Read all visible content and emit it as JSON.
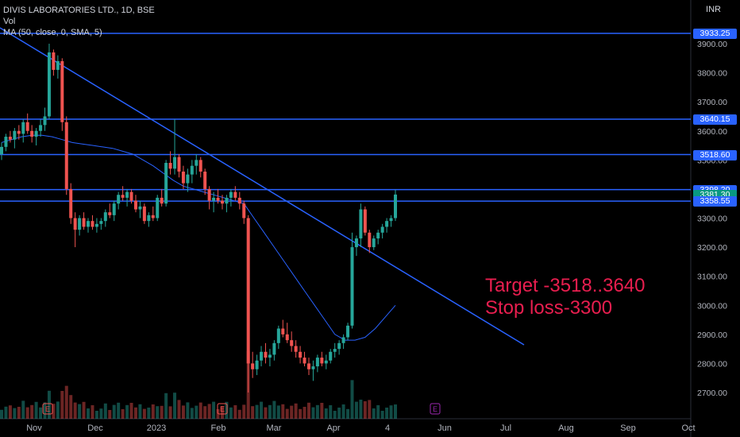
{
  "legend": {
    "symbol": "DIVIS LABORATORIES LTD., 1D, BSE",
    "vol": "Vol",
    "ma": "MA (50, close, 0, SMA, 5)"
  },
  "currency": "INR",
  "annotation": {
    "target": "Target -3518..3640",
    "stoploss": "Stop loss-3300"
  },
  "price_tags": [
    {
      "label": "3933.25",
      "value": 3933.25,
      "color": "#2962ff"
    },
    {
      "label": "3640.15",
      "value": 3640.15,
      "color": "#2962ff"
    },
    {
      "label": "3518.60",
      "value": 3518.6,
      "color": "#2962ff"
    },
    {
      "label": "3398.20",
      "value": 3398.2,
      "color": "#2962ff"
    },
    {
      "label": "3381.30",
      "value": 3381.3,
      "color": "#089981"
    },
    {
      "label": "3358.55",
      "value": 3358.55,
      "color": "#2962ff"
    }
  ],
  "chart_data": {
    "type": "candlestick",
    "y_ticks": [
      "3900.00",
      "3800.00",
      "3700.00",
      "3600.00",
      "3500.00",
      "3400.00",
      "3300.00",
      "3200.00",
      "3100.00",
      "3000.00",
      "2900.00",
      "2800.00",
      "2700.00"
    ],
    "y_tick_values": [
      3900,
      3800,
      3700,
      3600,
      3500,
      3400,
      3300,
      3200,
      3100,
      3000,
      2900,
      2800,
      2700
    ],
    "x_ticks": [
      "Nov",
      "Dec",
      "2023",
      "Feb",
      "Mar",
      "Apr",
      "4",
      "Jun",
      "Jul",
      "Aug",
      "Sep",
      "Oct"
    ],
    "horizontal_levels": [
      3933.25,
      3640.15,
      3518.6,
      3398.2,
      3358.55
    ],
    "last_price": 3381.3,
    "earnings_markers": [
      "E",
      "E",
      "E"
    ],
    "colors": {
      "up": "#26a69a",
      "down": "#ef5350",
      "level": "#2962ff",
      "ma": "#2962ff"
    },
    "candles": [
      [
        3520,
        3560,
        3500,
        3545
      ],
      [
        3545,
        3590,
        3530,
        3580
      ],
      [
        3580,
        3600,
        3560,
        3570
      ],
      [
        3570,
        3610,
        3540,
        3600
      ],
      [
        3600,
        3620,
        3570,
        3590
      ],
      [
        3590,
        3640,
        3560,
        3630
      ],
      [
        3630,
        3660,
        3590,
        3600
      ],
      [
        3600,
        3620,
        3560,
        3580
      ],
      [
        3580,
        3610,
        3550,
        3600
      ],
      [
        3600,
        3640,
        3580,
        3620
      ],
      [
        3620,
        3680,
        3600,
        3650
      ],
      [
        3650,
        3900,
        3640,
        3870
      ],
      [
        3870,
        3880,
        3790,
        3810
      ],
      [
        3810,
        3860,
        3780,
        3840
      ],
      [
        3840,
        3850,
        3600,
        3630
      ],
      [
        3630,
        3650,
        3380,
        3400
      ],
      [
        3400,
        3420,
        3280,
        3300
      ],
      [
        3300,
        3320,
        3200,
        3260
      ],
      [
        3260,
        3310,
        3240,
        3300
      ],
      [
        3300,
        3320,
        3260,
        3270
      ],
      [
        3270,
        3300,
        3250,
        3290
      ],
      [
        3290,
        3310,
        3260,
        3270
      ],
      [
        3270,
        3300,
        3250,
        3280
      ],
      [
        3280,
        3300,
        3260,
        3290
      ],
      [
        3290,
        3330,
        3270,
        3320
      ],
      [
        3320,
        3350,
        3300,
        3310
      ],
      [
        3310,
        3360,
        3290,
        3350
      ],
      [
        3350,
        3390,
        3330,
        3380
      ],
      [
        3380,
        3410,
        3360,
        3370
      ],
      [
        3370,
        3400,
        3340,
        3390
      ],
      [
        3390,
        3400,
        3350,
        3360
      ],
      [
        3360,
        3380,
        3320,
        3330
      ],
      [
        3330,
        3360,
        3300,
        3340
      ],
      [
        3340,
        3350,
        3280,
        3290
      ],
      [
        3290,
        3320,
        3270,
        3310
      ],
      [
        3310,
        3340,
        3290,
        3300
      ],
      [
        3300,
        3380,
        3290,
        3370
      ],
      [
        3370,
        3400,
        3340,
        3350
      ],
      [
        3350,
        3500,
        3340,
        3490
      ],
      [
        3490,
        3530,
        3450,
        3470
      ],
      [
        3470,
        3640,
        3450,
        3510
      ],
      [
        3510,
        3520,
        3440,
        3460
      ],
      [
        3460,
        3480,
        3400,
        3420
      ],
      [
        3420,
        3470,
        3390,
        3450
      ],
      [
        3450,
        3500,
        3420,
        3480
      ],
      [
        3480,
        3520,
        3450,
        3500
      ],
      [
        3500,
        3510,
        3440,
        3460
      ],
      [
        3460,
        3470,
        3380,
        3400
      ],
      [
        3400,
        3410,
        3330,
        3360
      ],
      [
        3360,
        3390,
        3320,
        3370
      ],
      [
        3370,
        3400,
        3350,
        3360
      ],
      [
        3360,
        3380,
        3330,
        3350
      ],
      [
        3350,
        3380,
        3320,
        3370
      ],
      [
        3370,
        3400,
        3340,
        3390
      ],
      [
        3390,
        3410,
        3360,
        3370
      ],
      [
        3370,
        3390,
        3330,
        3350
      ],
      [
        3350,
        3360,
        3280,
        3300
      ],
      [
        3300,
        3310,
        2700,
        2800
      ],
      [
        2800,
        2840,
        2750,
        2780
      ],
      [
        2780,
        2830,
        2760,
        2810
      ],
      [
        2810,
        2860,
        2790,
        2840
      ],
      [
        2840,
        2870,
        2800,
        2820
      ],
      [
        2820,
        2850,
        2790,
        2830
      ],
      [
        2830,
        2880,
        2810,
        2870
      ],
      [
        2870,
        2930,
        2850,
        2920
      ],
      [
        2920,
        2950,
        2890,
        2900
      ],
      [
        2900,
        2940,
        2870,
        2880
      ],
      [
        2880,
        2910,
        2840,
        2860
      ],
      [
        2860,
        2880,
        2820,
        2840
      ],
      [
        2840,
        2860,
        2800,
        2820
      ],
      [
        2820,
        2840,
        2790,
        2800
      ],
      [
        2800,
        2820,
        2760,
        2780
      ],
      [
        2780,
        2810,
        2740,
        2790
      ],
      [
        2790,
        2830,
        2770,
        2820
      ],
      [
        2820,
        2840,
        2790,
        2800
      ],
      [
        2800,
        2830,
        2780,
        2810
      ],
      [
        2810,
        2850,
        2800,
        2840
      ],
      [
        2840,
        2870,
        2820,
        2850
      ],
      [
        2850,
        2880,
        2830,
        2870
      ],
      [
        2870,
        2900,
        2850,
        2890
      ],
      [
        2890,
        2940,
        2880,
        2930
      ],
      [
        2930,
        3250,
        2920,
        3200
      ],
      [
        3200,
        3240,
        3170,
        3230
      ],
      [
        3230,
        3350,
        3200,
        3330
      ],
      [
        3330,
        3340,
        3240,
        3250
      ],
      [
        3250,
        3260,
        3180,
        3200
      ],
      [
        3200,
        3240,
        3190,
        3230
      ],
      [
        3230,
        3260,
        3210,
        3250
      ],
      [
        3250,
        3280,
        3230,
        3270
      ],
      [
        3270,
        3300,
        3250,
        3290
      ],
      [
        3290,
        3310,
        3270,
        3300
      ],
      [
        3300,
        3398,
        3290,
        3381
      ]
    ],
    "ma": [
      3560,
      3570,
      3580,
      3585,
      3585,
      3580,
      3570,
      3560,
      3555,
      3550,
      3545,
      3540,
      3530,
      3520,
      3500,
      3480,
      3455,
      3430,
      3410,
      3400,
      3390,
      3380,
      3370,
      3360,
      3350,
      3300,
      3250,
      3200,
      3150,
      3100,
      3050,
      3000,
      2950,
      2900,
      2880,
      2880,
      2890,
      2920,
      2960,
      3000
    ]
  }
}
